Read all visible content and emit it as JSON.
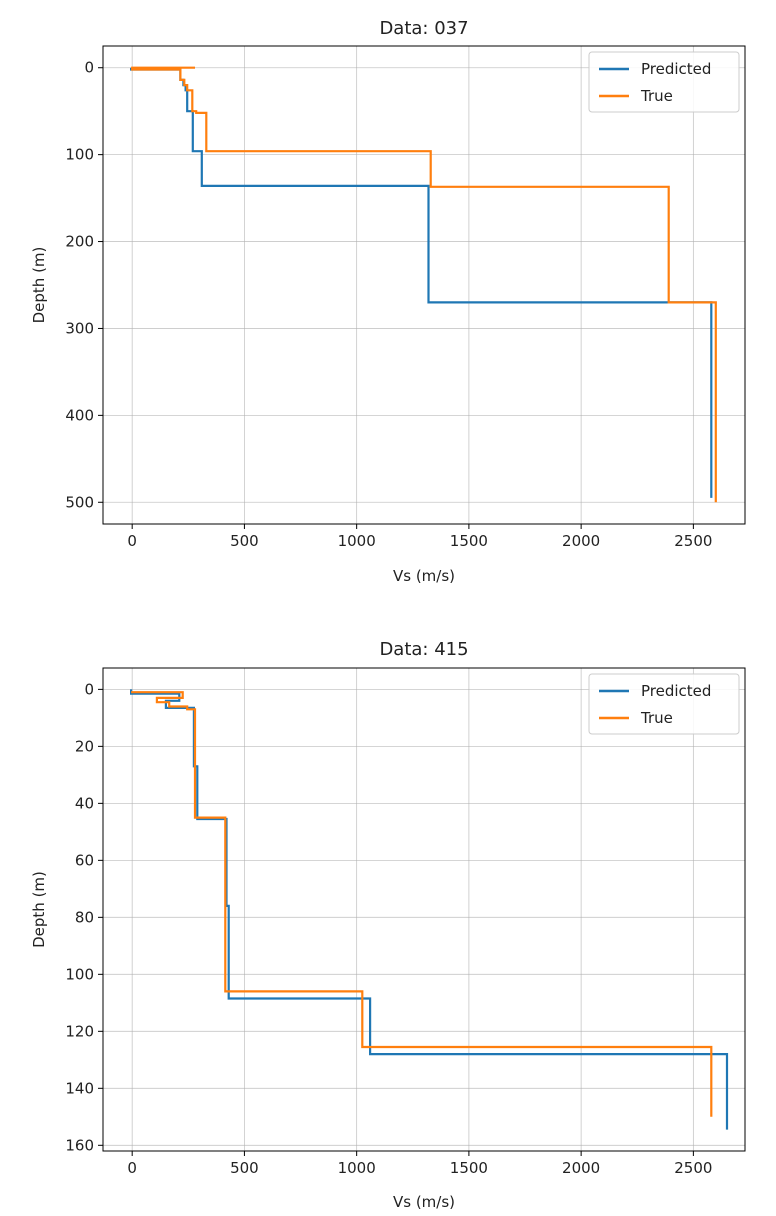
{
  "chart_data": [
    {
      "type": "line",
      "title": "Data: 037",
      "xlabel": "Vs (m/s)",
      "ylabel": "Depth (m)",
      "xlim": [
        -130,
        2730
      ],
      "ylim": [
        -25,
        525
      ],
      "y_inverted": true,
      "grid": true,
      "legend": "top-right",
      "x_ticks": [
        0,
        500,
        1000,
        1500,
        2000,
        2500
      ],
      "x_tick_labels": [
        "0",
        "500",
        "1000",
        "1500",
        "2000",
        "2500"
      ],
      "y_ticks": [
        0,
        100,
        200,
        300,
        400,
        500
      ],
      "y_tick_labels": [
        "0",
        "100",
        "200",
        "300",
        "400",
        "500"
      ],
      "series": [
        {
          "name": "Predicted",
          "color": "#1f77b4",
          "x": [
            -5,
            -5,
            215,
            215,
            228,
            228,
            238,
            238,
            245,
            245,
            270,
            270,
            310,
            310,
            1320,
            1320,
            2370,
            2370,
            2580,
            2580
          ],
          "y": [
            0,
            2,
            2,
            14,
            14,
            20,
            20,
            26,
            26,
            50,
            50,
            96,
            96,
            136,
            136,
            270,
            270,
            270,
            270,
            495
          ]
        },
        {
          "name": "True",
          "color": "#ff7f0e",
          "x": [
            280,
            0,
            0,
            215,
            215,
            232,
            232,
            245,
            245,
            268,
            268,
            285,
            285,
            330,
            330,
            1330,
            1330,
            2390,
            2390,
            2600,
            2600
          ],
          "y": [
            0,
            0,
            2,
            2,
            14,
            14,
            20,
            20,
            26,
            26,
            50,
            50,
            52,
            52,
            96,
            96,
            137,
            137,
            270,
            270,
            500
          ]
        }
      ]
    },
    {
      "type": "line",
      "title": "Data: 415",
      "xlabel": "Vs (m/s)",
      "ylabel": "Depth (m)",
      "xlim": [
        -130,
        2730
      ],
      "ylim": [
        -7.5,
        162
      ],
      "y_inverted": true,
      "grid": true,
      "legend": "top-right",
      "x_ticks": [
        0,
        500,
        1000,
        1500,
        2000,
        2500
      ],
      "x_tick_labels": [
        "0",
        "500",
        "1000",
        "1500",
        "2000",
        "2500"
      ],
      "y_ticks": [
        0,
        20,
        40,
        60,
        80,
        100,
        120,
        140,
        160
      ],
      "y_tick_labels": [
        "0",
        "20",
        "40",
        "60",
        "80",
        "100",
        "120",
        "140",
        "160"
      ],
      "series": [
        {
          "name": "Predicted",
          "color": "#1f77b4",
          "x": [
            -5,
            -5,
            210,
            210,
            150,
            150,
            275,
            275,
            290,
            290,
            420,
            420,
            430,
            430,
            1060,
            1060,
            2650,
            2650
          ],
          "y": [
            0,
            1.5,
            1.5,
            4,
            4,
            6.5,
            6.5,
            27,
            27,
            45.5,
            45.5,
            76,
            76,
            108.5,
            108.5,
            128,
            128,
            154.5
          ]
        },
        {
          "name": "True",
          "color": "#ff7f0e",
          "x": [
            -5,
            225,
            225,
            110,
            110,
            165,
            165,
            245,
            245,
            280,
            280,
            415,
            415,
            1025,
            1025,
            2580,
            2580
          ],
          "y": [
            1,
            1,
            3,
            3,
            4.5,
            4.5,
            6,
            6,
            7,
            7,
            45,
            45,
            106,
            106,
            125.5,
            125.5,
            150
          ]
        }
      ]
    }
  ]
}
